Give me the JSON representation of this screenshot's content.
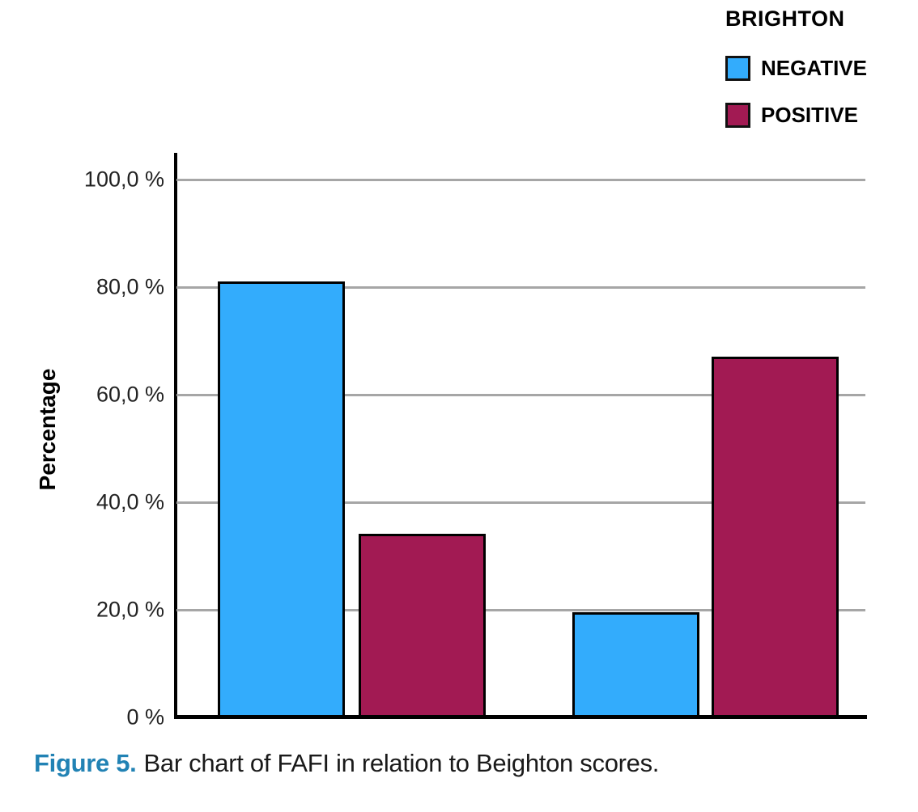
{
  "chart_data": {
    "type": "bar",
    "title": "",
    "ylabel": "Percentage",
    "xlabel": "",
    "categories": [
      "",
      ""
    ],
    "series": [
      {
        "name": "NEGATIVE",
        "color": "#33acfc",
        "values": [
          80.8,
          19.2
        ]
      },
      {
        "name": "POSITIVE",
        "color": "#a21a53",
        "values": [
          33.8,
          66.7
        ]
      }
    ],
    "legend": {
      "title": "BRIGHTON",
      "position": "top-right",
      "entries": [
        "NEGATIVE",
        "POSITIVE"
      ]
    },
    "ylim": [
      0,
      105
    ],
    "y_tick_values": [
      100,
      80,
      60,
      40,
      20,
      0
    ],
    "y_tick_labels": [
      "100,0 %",
      "80,0 %",
      "60,0 %",
      "40,0 %",
      "20,0 %",
      "0 %"
    ],
    "grid": "horizontal",
    "gridline_color": "#a6a6a6",
    "axis_color": "#000000",
    "bar_border_color": "#000000"
  },
  "caption": {
    "label": "Figure 5.",
    "text": "Bar chart of FAFI in relation to Beighton scores.",
    "label_color": "#2182b4"
  }
}
